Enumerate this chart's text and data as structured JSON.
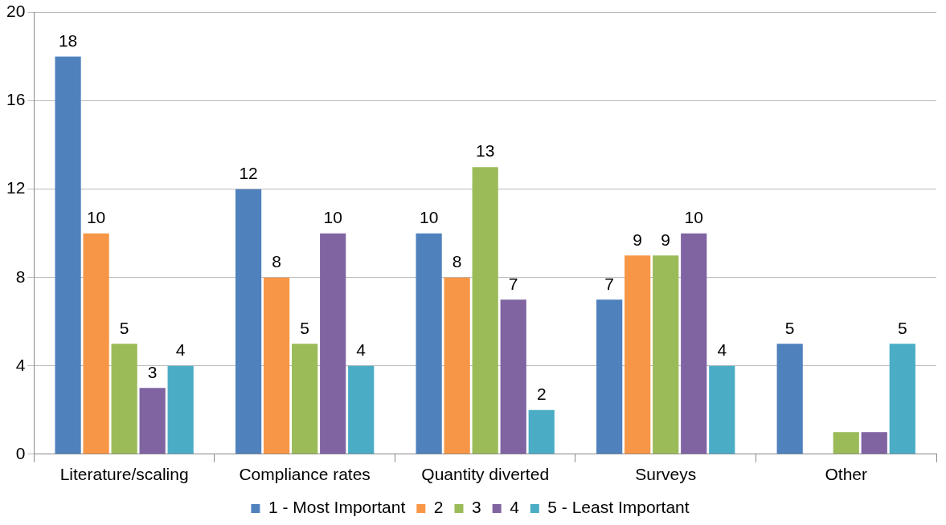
{
  "chart_data": {
    "type": "bar",
    "categories": [
      "Literature/scaling",
      "Compliance rates",
      "Quantity diverted",
      "Surveys",
      "Other"
    ],
    "series": [
      {
        "name": "1 - Most Important",
        "color": "#4f81bd",
        "values": [
          18,
          12,
          10,
          7,
          5
        ],
        "value_labels": [
          "18",
          "12",
          "10",
          "7",
          "5"
        ]
      },
      {
        "name": "2",
        "color": "#f79646",
        "values": [
          10,
          8,
          8,
          9,
          null
        ],
        "value_labels": [
          "10",
          "8",
          "8",
          "9",
          null
        ]
      },
      {
        "name": "3",
        "color": "#9bbb59",
        "values": [
          5,
          5,
          13,
          9,
          1
        ],
        "value_labels": [
          "5",
          "5",
          "13",
          "9",
          null
        ]
      },
      {
        "name": "4",
        "color": "#8064a2",
        "values": [
          3,
          10,
          7,
          10,
          1
        ],
        "value_labels": [
          "3",
          "10",
          "7",
          "10",
          null
        ]
      },
      {
        "name": "5 - Least Important",
        "color": "#4bacc6",
        "values": [
          4,
          4,
          2,
          4,
          5
        ],
        "value_labels": [
          "4",
          "4",
          "2",
          "4",
          "5"
        ]
      }
    ],
    "ylim": [
      0,
      20
    ],
    "yticks": [
      0,
      4,
      8,
      12,
      16,
      20
    ],
    "grid": "y",
    "legend": "bottom"
  }
}
